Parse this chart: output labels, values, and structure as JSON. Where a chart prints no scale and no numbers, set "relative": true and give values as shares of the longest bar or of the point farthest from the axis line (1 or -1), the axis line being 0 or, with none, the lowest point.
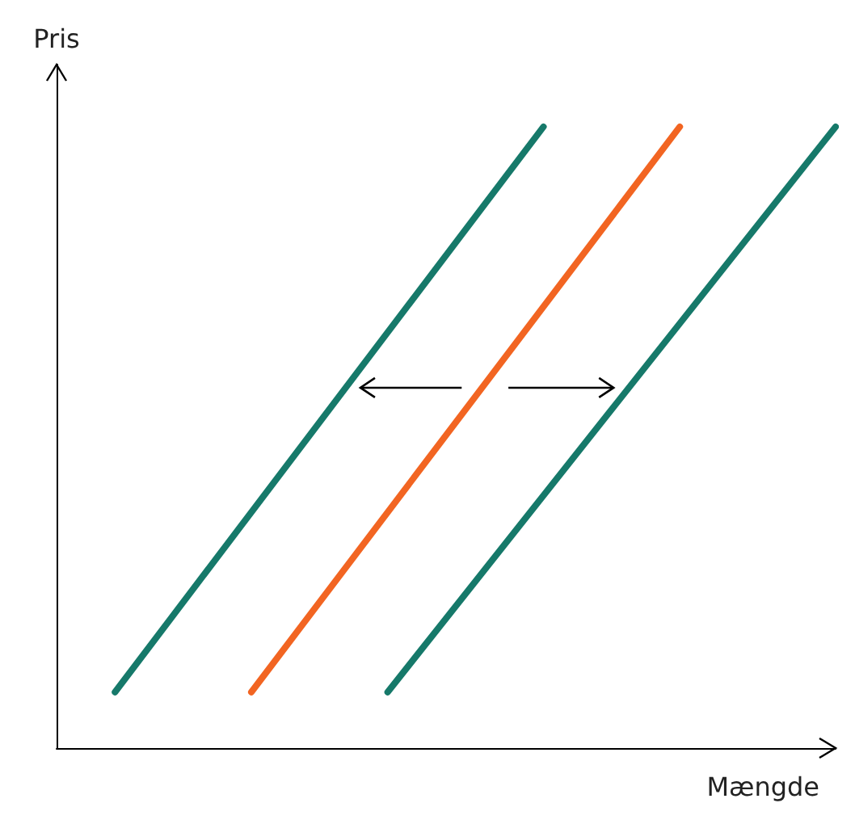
{
  "chart_data": {
    "type": "line",
    "relative": true,
    "xlabel": "Mængde",
    "ylabel": "Pris",
    "ylim": [
      0,
      1.1
    ],
    "grid": false,
    "marker": "none",
    "line_style": "solid",
    "categories": [
      null,
      null,
      null,
      null,
      null,
      null,
      null,
      null,
      null,
      null,
      null,
      null,
      null,
      null,
      null,
      null,
      null,
      null,
      null,
      null,
      null,
      null,
      null,
      null,
      null,
      null,
      null,
      null,
      null,
      null,
      null,
      null,
      null,
      null,
      null,
      null,
      null,
      null,
      null,
      null,
      null
    ],
    "series": [
      {
        "color": "#16796a",
        "values": [
          null,
          null,
          null,
          0.09,
          null,
          null,
          null,
          null,
          null,
          null,
          null,
          null,
          null,
          null,
          null,
          null,
          null,
          null,
          null,
          null,
          null,
          null,
          null,
          null,
          null,
          1,
          null,
          null,
          null,
          null,
          null,
          null,
          null,
          null,
          null,
          null,
          null,
          null,
          null,
          null,
          null
        ]
      },
      {
        "color": "#f26522",
        "values": [
          null,
          null,
          null,
          null,
          null,
          null,
          null,
          null,
          null,
          null,
          0.09,
          null,
          null,
          null,
          null,
          null,
          null,
          null,
          null,
          null,
          null,
          null,
          null,
          null,
          null,
          null,
          null,
          null,
          null,
          null,
          null,
          null,
          1,
          null,
          null,
          null,
          null,
          null,
          null,
          null,
          null
        ]
      },
      {
        "color": "#16796a",
        "values": [
          null,
          null,
          null,
          null,
          null,
          null,
          null,
          null,
          null,
          null,
          null,
          null,
          null,
          null,
          null,
          null,
          null,
          0.09,
          null,
          null,
          null,
          null,
          null,
          null,
          null,
          null,
          null,
          null,
          null,
          null,
          null,
          null,
          null,
          null,
          null,
          null,
          null,
          null,
          null,
          null,
          1
        ]
      }
    ]
  }
}
